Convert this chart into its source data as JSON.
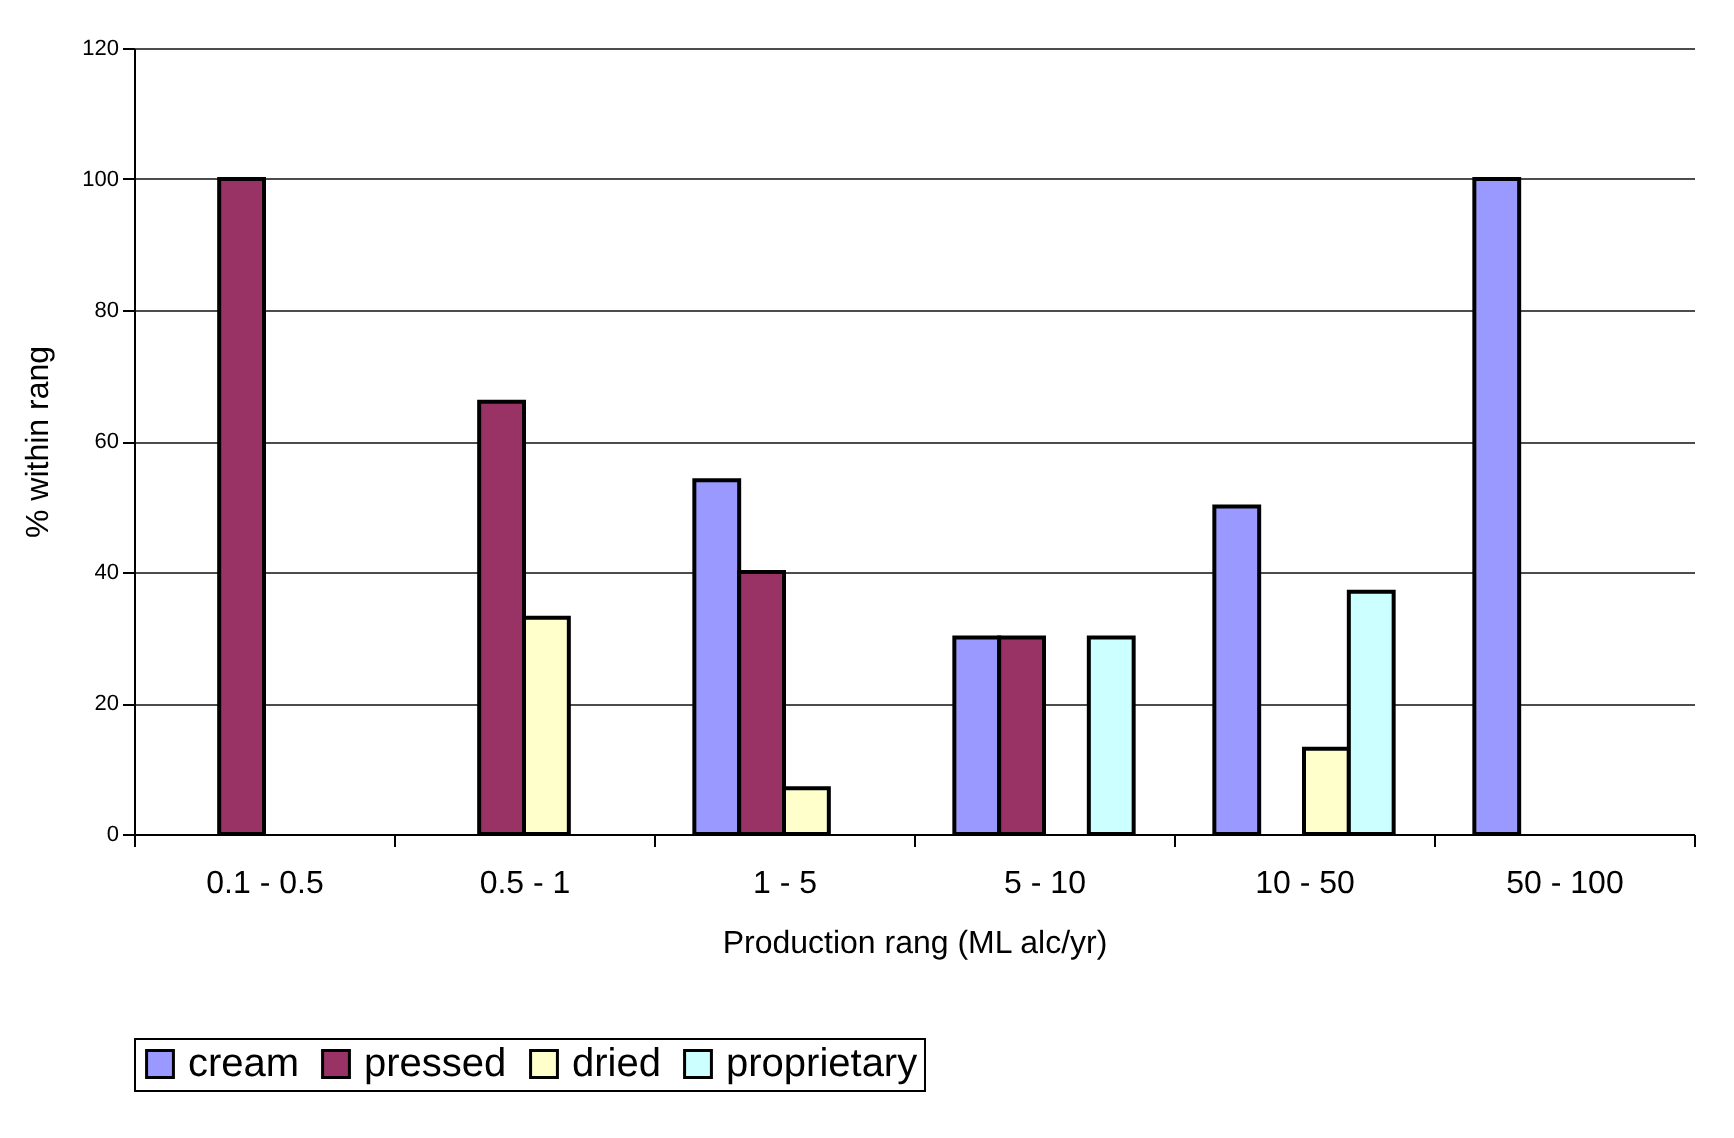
{
  "chart_data": {
    "type": "bar",
    "xlabel": "Production rang (ML alc/yr)",
    "ylabel": "% within rang",
    "categories": [
      "0.1 - 0.5",
      "0.5 - 1",
      "1 - 5",
      "5 - 10",
      "10 - 50",
      "50 - 100"
    ],
    "series": [
      {
        "name": "cream",
        "color": "#9999ff",
        "values": [
          null,
          null,
          54,
          30,
          50,
          100
        ]
      },
      {
        "name": "pressed",
        "color": "#993366",
        "values": [
          100,
          66,
          40,
          30,
          null,
          null
        ]
      },
      {
        "name": "dried",
        "color": "#ffffcc",
        "values": [
          null,
          33,
          7,
          null,
          13,
          null
        ]
      },
      {
        "name": "proprietary",
        "color": "#ccffff",
        "values": [
          null,
          null,
          null,
          30,
          37,
          null
        ]
      }
    ],
    "ylim": [
      0,
      120
    ],
    "yticks": [
      0,
      20,
      40,
      60,
      80,
      100,
      120
    ],
    "grid": "y",
    "legend": "bottom"
  }
}
